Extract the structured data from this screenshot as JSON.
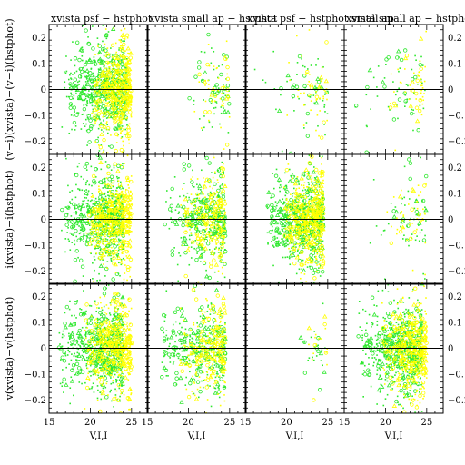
{
  "chart_data": {
    "type": "scatter",
    "layout": "3 rows x 4 columns panel grid",
    "column_titles": [
      "xvista psf − hstphot",
      "xvista small ap − hstphot",
      "xvista psf − hstphot small ap",
      "xvista small ap − hstphot small ap"
    ],
    "row_ylabels": [
      "(v−i)(xvista)−(v−i)(hstphot)",
      "i(xvista)−i(hstphot)",
      "v(xvista)−v(hstphot)"
    ],
    "xlabel": "V,I,I",
    "xlim": [
      15,
      27
    ],
    "ylim": [
      -0.25,
      0.25
    ],
    "xticks": [
      15,
      20,
      25
    ],
    "yticks": [
      -0.2,
      -0.1,
      0,
      0.1,
      0.2
    ],
    "ytick_labels": [
      "−0.2",
      "−0.1",
      "0",
      "0.1",
      "0.2"
    ],
    "right_axis_tick_labels_visible": [
      "−0.2",
      "−0.1",
      "0",
      "0.1",
      "0.2"
    ],
    "zero_line": true,
    "colors": {
      "green": "#2ee82e",
      "yellow": "#ffff00",
      "axis": "#000000"
    },
    "series": [
      {
        "color": "green",
        "marker": "open circle / dot / triangle"
      },
      {
        "color": "yellow",
        "marker": "open circle / dot / triangle"
      }
    ],
    "panels": [
      {
        "row": 0,
        "col": 0,
        "density": "very dense",
        "green_x_range": [
          16.5,
          24.5
        ],
        "yellow_x_range": [
          20,
          25
        ],
        "y_spread": 0.25
      },
      {
        "row": 0,
        "col": 1,
        "density": "sparse",
        "green_x_range": [
          19.5,
          25
        ],
        "yellow_x_range": [
          20.5,
          25
        ],
        "y_spread": 0.25
      },
      {
        "row": 0,
        "col": 2,
        "density": "sparse",
        "green_x_range": [
          16,
          25
        ],
        "yellow_x_range": [
          20,
          25
        ],
        "y_spread": 0.25
      },
      {
        "row": 0,
        "col": 3,
        "density": "sparse",
        "green_x_range": [
          16,
          25
        ],
        "yellow_x_range": [
          20,
          25
        ],
        "y_spread": 0.25
      },
      {
        "row": 1,
        "col": 0,
        "density": "very dense",
        "green_x_range": [
          16.5,
          24
        ],
        "yellow_x_range": [
          19.5,
          25
        ],
        "y_spread": 0.25
      },
      {
        "row": 1,
        "col": 1,
        "density": "dense",
        "green_x_range": [
          17,
          24.5
        ],
        "yellow_x_range": [
          19,
          24.5
        ],
        "y_spread": 0.25
      },
      {
        "row": 1,
        "col": 2,
        "density": "very dense",
        "green_x_range": [
          17.5,
          24.5
        ],
        "yellow_x_range": [
          19.5,
          24.5
        ],
        "y_spread": 0.25
      },
      {
        "row": 1,
        "col": 3,
        "density": "sparse",
        "green_x_range": [
          17,
          25
        ],
        "yellow_x_range": [
          20,
          25
        ],
        "y_spread": 0.25
      },
      {
        "row": 2,
        "col": 0,
        "density": "very dense",
        "green_x_range": [
          16,
          24
        ],
        "yellow_x_range": [
          19,
          25
        ],
        "y_spread": 0.25
      },
      {
        "row": 2,
        "col": 1,
        "density": "dense",
        "green_x_range": [
          16,
          24.5
        ],
        "yellow_x_range": [
          18.5,
          24.5
        ],
        "y_spread": 0.25
      },
      {
        "row": 2,
        "col": 2,
        "density": "very sparse",
        "green_x_range": [
          21,
          25
        ],
        "yellow_x_range": [
          22,
          25
        ],
        "y_spread": 0.2
      },
      {
        "row": 2,
        "col": 3,
        "density": "very dense",
        "green_x_range": [
          16.5,
          24.5
        ],
        "yellow_x_range": [
          19.5,
          25
        ],
        "y_spread": 0.25
      }
    ]
  }
}
